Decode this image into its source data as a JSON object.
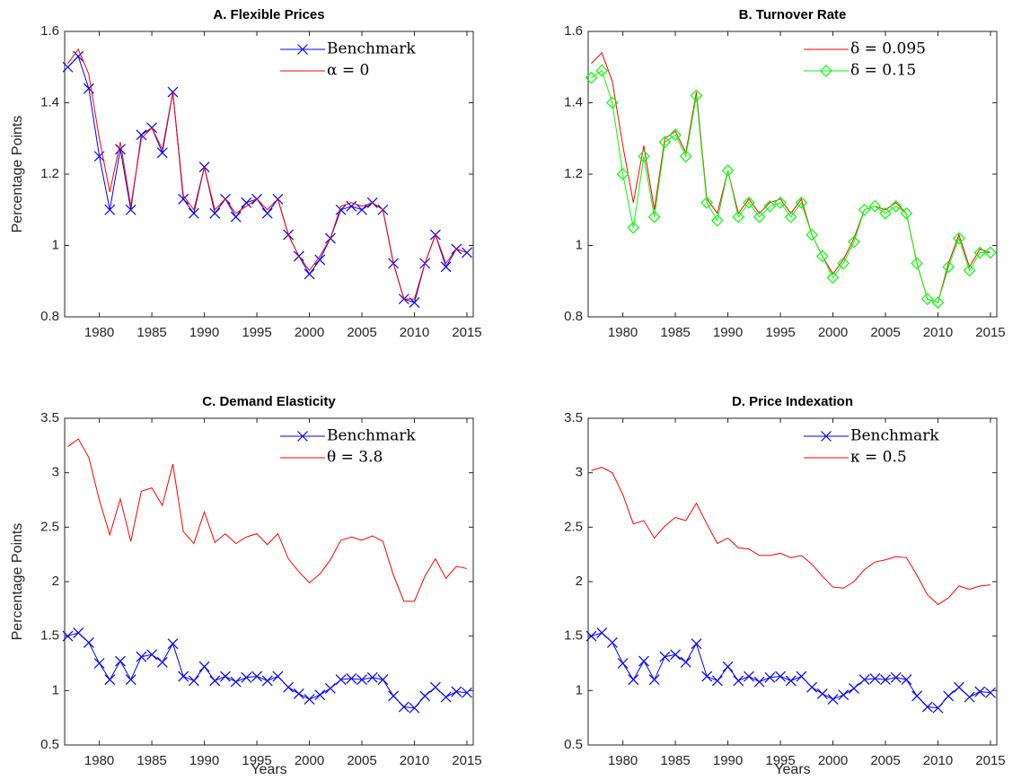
{
  "chart_data": [
    {
      "type": "line",
      "title": "A. Flexible Prices",
      "ylabel": "Percentage Points",
      "x": [
        1977,
        1978,
        1979,
        1980,
        1981,
        1982,
        1983,
        1984,
        1985,
        1986,
        1987,
        1988,
        1989,
        1990,
        1991,
        1992,
        1993,
        1994,
        1995,
        1996,
        1997,
        1998,
        1999,
        2000,
        2001,
        2002,
        2003,
        2004,
        2005,
        2006,
        2007,
        2008,
        2009,
        2010,
        2011,
        2012,
        2013,
        2014,
        2015
      ],
      "series": [
        {
          "name": "Benchmark",
          "color": "#0000ff",
          "marker": "x",
          "values": [
            1.5,
            1.53,
            1.44,
            1.25,
            1.1,
            1.27,
            1.1,
            1.31,
            1.33,
            1.26,
            1.43,
            1.13,
            1.09,
            1.22,
            1.09,
            1.13,
            1.08,
            1.12,
            1.13,
            1.09,
            1.13,
            1.03,
            0.97,
            0.92,
            0.96,
            1.02,
            1.1,
            1.11,
            1.1,
            1.12,
            1.1,
            0.95,
            0.85,
            0.84,
            0.95,
            1.03,
            0.94,
            0.99,
            0.98
          ]
        },
        {
          "name": "α = 0",
          "color": "#ff0000",
          "values": [
            1.51,
            1.55,
            1.48,
            1.3,
            1.15,
            1.29,
            1.11,
            1.3,
            1.33,
            1.27,
            1.43,
            1.14,
            1.1,
            1.22,
            1.1,
            1.13,
            1.09,
            1.11,
            1.13,
            1.1,
            1.13,
            1.03,
            0.97,
            0.93,
            0.97,
            1.02,
            1.11,
            1.12,
            1.11,
            1.12,
            1.1,
            0.95,
            0.85,
            0.85,
            0.95,
            1.03,
            0.95,
            0.99,
            0.98
          ]
        }
      ],
      "xlim": [
        1976.7,
        2015.6
      ],
      "xticks": [
        1980,
        1985,
        1990,
        1995,
        2000,
        2005,
        2010,
        2015
      ],
      "ylim": [
        0.8,
        1.6
      ],
      "yticks": [
        0.8,
        1,
        1.2,
        1.4,
        1.6
      ],
      "legend": "upper right"
    },
    {
      "type": "line",
      "title": "B. Turnover Rate",
      "x": [
        1977,
        1978,
        1979,
        1980,
        1981,
        1982,
        1983,
        1984,
        1985,
        1986,
        1987,
        1988,
        1989,
        1990,
        1991,
        1992,
        1993,
        1994,
        1995,
        1996,
        1997,
        1998,
        1999,
        2000,
        2001,
        2002,
        2003,
        2004,
        2005,
        2006,
        2007,
        2008,
        2009,
        2010,
        2011,
        2012,
        2013,
        2014,
        2015
      ],
      "series": [
        {
          "name": "δ = 0.095",
          "color": "#ff0000",
          "values": [
            1.51,
            1.54,
            1.46,
            1.28,
            1.12,
            1.28,
            1.1,
            1.3,
            1.32,
            1.26,
            1.43,
            1.13,
            1.09,
            1.21,
            1.09,
            1.13,
            1.09,
            1.12,
            1.13,
            1.09,
            1.13,
            1.03,
            0.97,
            0.92,
            0.96,
            1.02,
            1.1,
            1.11,
            1.1,
            1.12,
            1.09,
            0.95,
            0.85,
            0.84,
            0.95,
            1.03,
            0.94,
            0.99,
            0.98
          ]
        },
        {
          "name": "δ = 0.15",
          "color": "#00ff00",
          "marker": "diamond",
          "values": [
            1.47,
            1.49,
            1.4,
            1.2,
            1.05,
            1.25,
            1.08,
            1.29,
            1.31,
            1.25,
            1.42,
            1.12,
            1.07,
            1.21,
            1.08,
            1.12,
            1.08,
            1.11,
            1.12,
            1.08,
            1.12,
            1.03,
            0.97,
            0.91,
            0.95,
            1.01,
            1.1,
            1.11,
            1.09,
            1.11,
            1.09,
            0.95,
            0.85,
            0.84,
            0.94,
            1.02,
            0.93,
            0.98,
            0.98
          ]
        }
      ],
      "xlim": [
        1976.7,
        2015.6
      ],
      "xticks": [
        1980,
        1985,
        1990,
        1995,
        2000,
        2005,
        2010,
        2015
      ],
      "ylim": [
        0.8,
        1.6
      ],
      "yticks": [
        0.8,
        1,
        1.2,
        1.4,
        1.6
      ],
      "legend": "upper right"
    },
    {
      "type": "line",
      "title": "C. Demand Elasticity",
      "ylabel": "Percentage Points",
      "xlabel": "Years",
      "x": [
        1977,
        1978,
        1979,
        1980,
        1981,
        1982,
        1983,
        1984,
        1985,
        1986,
        1987,
        1988,
        1989,
        1990,
        1991,
        1992,
        1993,
        1994,
        1995,
        1996,
        1997,
        1998,
        1999,
        2000,
        2001,
        2002,
        2003,
        2004,
        2005,
        2006,
        2007,
        2008,
        2009,
        2010,
        2011,
        2012,
        2013,
        2014,
        2015
      ],
      "series": [
        {
          "name": "Benchmark",
          "color": "#0000ff",
          "marker": "x",
          "values": [
            1.5,
            1.53,
            1.44,
            1.25,
            1.1,
            1.27,
            1.1,
            1.31,
            1.33,
            1.26,
            1.43,
            1.13,
            1.09,
            1.22,
            1.09,
            1.13,
            1.08,
            1.12,
            1.13,
            1.09,
            1.13,
            1.03,
            0.97,
            0.92,
            0.96,
            1.02,
            1.1,
            1.11,
            1.1,
            1.12,
            1.1,
            0.95,
            0.85,
            0.84,
            0.95,
            1.03,
            0.94,
            0.99,
            0.98
          ]
        },
        {
          "name": "θ = 3.8",
          "color": "#ff0000",
          "values": [
            3.24,
            3.31,
            3.14,
            2.75,
            2.43,
            2.76,
            2.37,
            2.83,
            2.86,
            2.7,
            3.08,
            2.46,
            2.35,
            2.64,
            2.36,
            2.44,
            2.35,
            2.41,
            2.44,
            2.34,
            2.44,
            2.21,
            2.09,
            1.99,
            2.07,
            2.2,
            2.38,
            2.41,
            2.38,
            2.42,
            2.37,
            2.06,
            1.82,
            1.82,
            2.05,
            2.21,
            2.03,
            2.14,
            2.12
          ]
        }
      ],
      "xlim": [
        1976.7,
        2015.6
      ],
      "xticks": [
        1980,
        1985,
        1990,
        1995,
        2000,
        2005,
        2010,
        2015
      ],
      "ylim": [
        0.5,
        3.5
      ],
      "yticks": [
        0.5,
        1,
        1.5,
        2,
        2.5,
        3,
        3.5
      ],
      "legend": "upper right"
    },
    {
      "type": "line",
      "title": "D. Price Indexation",
      "xlabel": "Years",
      "x": [
        1977,
        1978,
        1979,
        1980,
        1981,
        1982,
        1983,
        1984,
        1985,
        1986,
        1987,
        1988,
        1989,
        1990,
        1991,
        1992,
        1993,
        1994,
        1995,
        1996,
        1997,
        1998,
        1999,
        2000,
        2001,
        2002,
        2003,
        2004,
        2005,
        2006,
        2007,
        2008,
        2009,
        2010,
        2011,
        2012,
        2013,
        2014,
        2015
      ],
      "series": [
        {
          "name": "Benchmark",
          "color": "#0000ff",
          "marker": "x",
          "values": [
            1.5,
            1.53,
            1.44,
            1.25,
            1.1,
            1.27,
            1.1,
            1.31,
            1.33,
            1.26,
            1.43,
            1.13,
            1.09,
            1.22,
            1.09,
            1.13,
            1.08,
            1.12,
            1.13,
            1.09,
            1.13,
            1.03,
            0.97,
            0.92,
            0.96,
            1.02,
            1.1,
            1.11,
            1.1,
            1.12,
            1.1,
            0.95,
            0.85,
            0.84,
            0.95,
            1.03,
            0.94,
            0.99,
            0.98
          ]
        },
        {
          "name": "κ = 0.5",
          "color": "#ff0000",
          "values": [
            3.02,
            3.05,
            3.0,
            2.8,
            2.53,
            2.56,
            2.4,
            2.51,
            2.59,
            2.56,
            2.72,
            2.53,
            2.35,
            2.4,
            2.31,
            2.3,
            2.24,
            2.24,
            2.26,
            2.22,
            2.24,
            2.16,
            2.05,
            1.95,
            1.94,
            2.0,
            2.11,
            2.18,
            2.2,
            2.23,
            2.22,
            2.06,
            1.88,
            1.79,
            1.85,
            1.96,
            1.93,
            1.96,
            1.97
          ]
        }
      ],
      "xlim": [
        1976.7,
        2015.6
      ],
      "xticks": [
        1980,
        1985,
        1990,
        1995,
        2000,
        2005,
        2010,
        2015
      ],
      "ylim": [
        0.5,
        3.5
      ],
      "yticks": [
        0.5,
        1,
        1.5,
        2,
        2.5,
        3,
        3.5
      ],
      "legend": "upper right"
    }
  ]
}
